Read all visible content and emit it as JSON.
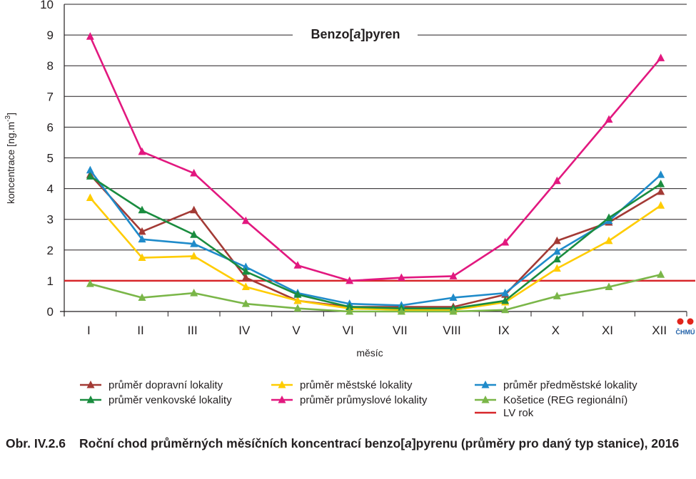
{
  "chart_data": {
    "type": "line",
    "title": "Benzo[a]pyren",
    "title_parts": [
      "Benzo[",
      "a",
      "]pyren"
    ],
    "xlabel": "měsíc",
    "ylabel": "koncentrace [ng.m",
    "ylabel_superscript": "-3",
    "ylabel_suffix": "]",
    "categories": [
      "I",
      "II",
      "III",
      "IV",
      "V",
      "VI",
      "VII",
      "VIII",
      "IX",
      "X",
      "XI",
      "XII"
    ],
    "yticks": [
      "0",
      "1",
      "2",
      "3",
      "4",
      "5",
      "6",
      "7",
      "8",
      "9",
      "10"
    ],
    "ylim": [
      0,
      10
    ],
    "grid": "horizontal",
    "legend_position": "bottom",
    "series": [
      {
        "name": "průměr dopravní lokality",
        "color": "#a33a35",
        "values": [
          4.45,
          2.6,
          3.3,
          1.1,
          0.35,
          0.15,
          0.15,
          0.15,
          0.55,
          2.3,
          2.9,
          3.9
        ]
      },
      {
        "name": "průměr městské lokality",
        "color": "#ffcc00",
        "values": [
          3.7,
          1.75,
          1.8,
          0.8,
          0.35,
          0.1,
          0.05,
          0.05,
          0.3,
          1.4,
          2.3,
          3.45
        ]
      },
      {
        "name": "průměr předměstské lokality",
        "color": "#1f8bca",
        "values": [
          4.6,
          2.35,
          2.2,
          1.45,
          0.6,
          0.25,
          0.2,
          0.45,
          0.6,
          1.95,
          2.95,
          4.45
        ]
      },
      {
        "name": "průměr venkovské lokality",
        "color": "#1a8c3f",
        "values": [
          4.4,
          3.3,
          2.5,
          1.3,
          0.55,
          0.15,
          0.1,
          0.1,
          0.35,
          1.7,
          3.05,
          4.15
        ]
      },
      {
        "name": "průměr průmyslové lokality",
        "color": "#e2187f",
        "values": [
          8.95,
          5.2,
          4.5,
          2.95,
          1.5,
          1.0,
          1.1,
          1.15,
          2.25,
          4.25,
          6.25,
          8.25
        ]
      },
      {
        "name": "Košetice (REG regionální)",
        "color": "#7ab648",
        "values": [
          0.9,
          0.45,
          0.6,
          0.25,
          0.1,
          0.0,
          0.0,
          0.0,
          0.05,
          0.5,
          0.8,
          1.2
        ]
      }
    ],
    "reference_line": {
      "name": "LV rok",
      "value": 1,
      "color": "#d7262a"
    }
  },
  "logo": {
    "text": "ČHMÚ",
    "color": "#e1251b",
    "text_color": "#2060a8"
  },
  "caption": {
    "number": "Obr. IV.2.6",
    "text_before": "Roční chod průměrných měsíčních koncentrací benzo[",
    "text_italic": "a",
    "text_after": "]pyrenu (průměry pro daný typ stanice), 2016"
  }
}
